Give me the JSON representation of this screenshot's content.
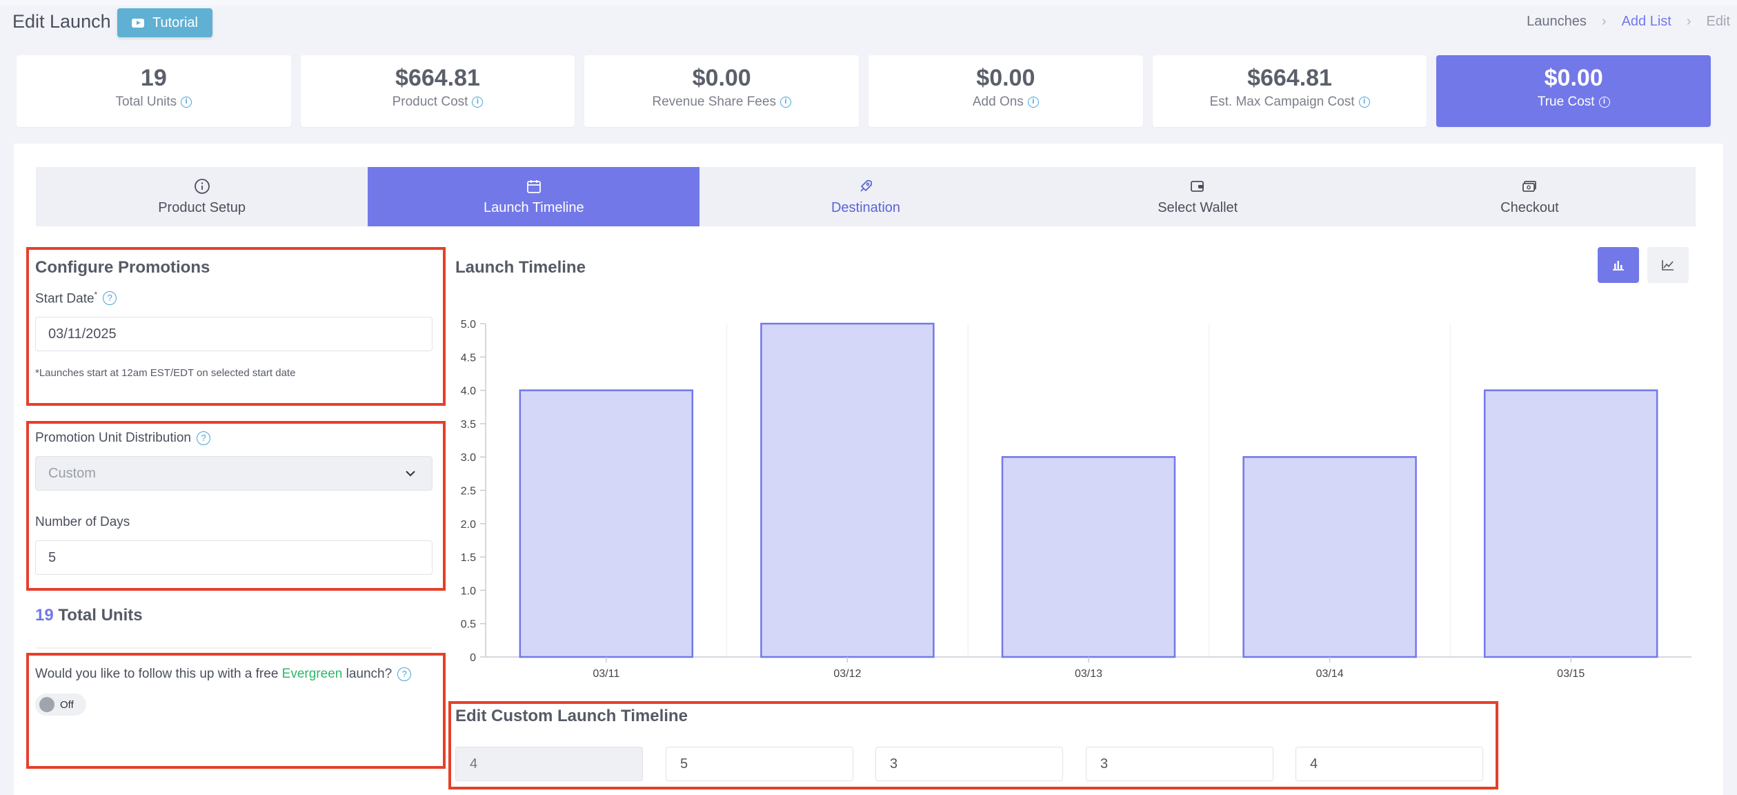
{
  "header": {
    "title": "Edit Launch",
    "tutorial_label": "Tutorial",
    "breadcrumb": [
      "Launches",
      "Add List",
      "Edit"
    ]
  },
  "stats": [
    {
      "value": "19",
      "label": "Total Units"
    },
    {
      "value": "$664.81",
      "label": "Product Cost"
    },
    {
      "value": "$0.00",
      "label": "Revenue Share Fees"
    },
    {
      "value": "$0.00",
      "label": "Add Ons"
    },
    {
      "value": "$664.81",
      "label": "Est. Max Campaign Cost"
    },
    {
      "value": "$0.00",
      "label": "True Cost"
    }
  ],
  "steps": [
    {
      "label": "Product Setup",
      "icon": "info-icon"
    },
    {
      "label": "Launch Timeline",
      "icon": "calendar-icon"
    },
    {
      "label": "Destination",
      "icon": "rocket-icon"
    },
    {
      "label": "Select Wallet",
      "icon": "wallet-icon"
    },
    {
      "label": "Checkout",
      "icon": "money-icon"
    }
  ],
  "promotions": {
    "title": "Configure Promotions",
    "start_date_label": "Start Date",
    "required_mark": "*",
    "start_date_value": "03/11/2025",
    "note": "*Launches start at 12am EST/EDT on selected start date"
  },
  "distribution": {
    "label": "Promotion Unit Distribution",
    "selected": "Custom",
    "days_label": "Number of Days",
    "days_value": "5"
  },
  "total_units": {
    "count": "19",
    "label": "Total Units"
  },
  "evergreen": {
    "question_start": "Would you like to follow this up with a free ",
    "highlight": "Evergreen",
    "question_end": " launch?",
    "toggle_label": "Off"
  },
  "timeline": {
    "title": "Launch Timeline",
    "edit_title": "Edit Custom Launch Timeline",
    "values": [
      "4",
      "5",
      "3",
      "3",
      "4"
    ]
  },
  "chart_data": {
    "type": "bar",
    "categories": [
      "03/11",
      "03/12",
      "03/13",
      "03/14",
      "03/15"
    ],
    "values": [
      4,
      5,
      3,
      3,
      4
    ],
    "ylim": [
      0,
      5
    ],
    "yticks": [
      "0",
      "0.5",
      "1.0",
      "1.5",
      "2.0",
      "2.5",
      "3.0",
      "3.5",
      "4.0",
      "4.5",
      "5.0"
    ],
    "bar_color": "#d5d7f8",
    "bar_stroke": "#7278e8",
    "grid": "vertical"
  }
}
